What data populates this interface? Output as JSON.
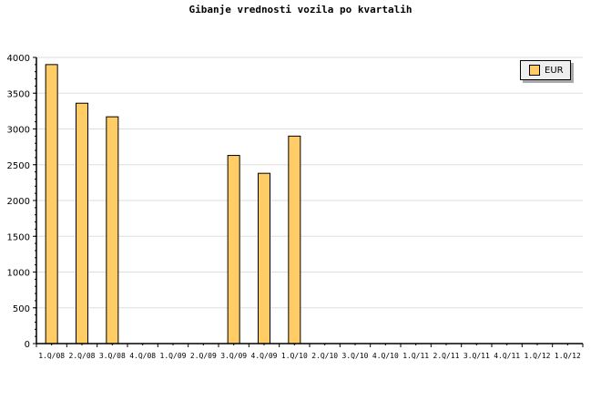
{
  "chart_data": {
    "type": "bar",
    "title": "Gibanje vrednosti vozila po kvartalih",
    "xlabel": "",
    "ylabel": "",
    "categories": [
      "1.Q/08",
      "2.Q/08",
      "3.Q/08",
      "4.Q/08",
      "1.Q/09",
      "2.Q/09",
      "3.Q/09",
      "4.Q/09",
      "1.Q/10",
      "2.Q/10",
      "3.Q/10",
      "4.Q/10",
      "1.Q/11",
      "2.Q/11",
      "3.Q/11",
      "4.Q/11",
      "1.Q/12",
      "1.Q/12"
    ],
    "series": [
      {
        "name": "EUR",
        "color": "#ffcc66",
        "values": [
          3900,
          3360,
          3170,
          null,
          null,
          null,
          2630,
          2380,
          2900,
          null,
          null,
          null,
          null,
          null,
          null,
          null,
          null,
          null
        ]
      }
    ],
    "ylim": [
      0,
      4000
    ],
    "yticks": [
      0,
      500,
      1000,
      1500,
      2000,
      2500,
      3000,
      3500,
      4000
    ],
    "grid": true,
    "legend": "top-right"
  }
}
